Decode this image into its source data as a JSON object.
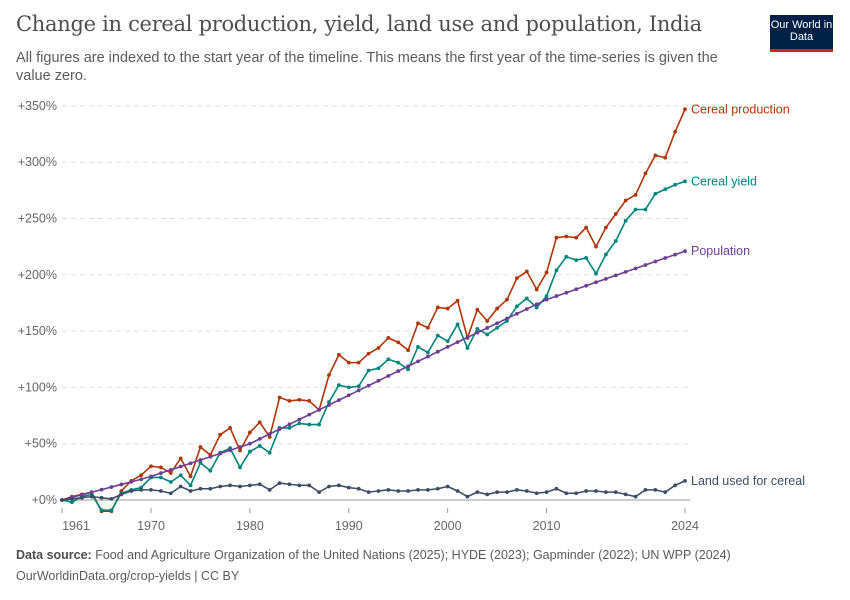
{
  "header": {
    "title": "Change in cereal production, yield, land use and population, India",
    "subtitle": "All figures are indexed to the start year of the timeline. This means the first year of the time-series is given the value zero.",
    "logo": "Our World in Data"
  },
  "footer": {
    "source_label": "Data source:",
    "source_text": " Food and Agriculture Organization of the United Nations (2025); HYDE (2023); Gapminder (2022); UN WPP (2024)",
    "url": "OurWorldinData.org/crop-yields | CC BY"
  },
  "chart_data": {
    "type": "line",
    "title": "Change in cereal production, yield, land use and population, India",
    "xlim": [
      1961,
      2024
    ],
    "ylim": [
      -10,
      350
    ],
    "x_ticks": [
      1961,
      1970,
      1980,
      1990,
      2000,
      2010,
      2024
    ],
    "y_ticks": [
      0,
      50,
      100,
      150,
      200,
      250,
      300,
      350
    ],
    "y_tick_labels": [
      "+0%",
      "+50%",
      "+100%",
      "+150%",
      "+200%",
      "+250%",
      "+300%",
      "+350%"
    ],
    "grid": "horizontal dashed",
    "legend": "inline labels at line ends (right)",
    "x_start": 1961,
    "series": [
      {
        "name": "Cereal production",
        "color": "#b13507",
        "values": [
          0,
          3,
          5,
          7,
          -10,
          -10,
          8,
          17,
          22,
          30,
          29,
          24,
          37,
          21,
          47,
          40,
          58,
          64,
          44,
          60,
          69,
          56,
          91,
          88,
          89,
          88,
          80,
          111,
          129,
          122,
          122,
          130,
          135,
          144,
          140,
          133,
          157,
          153,
          171,
          170,
          177,
          144,
          169,
          159,
          170,
          178,
          197,
          203,
          187,
          202,
          233,
          234,
          233,
          242,
          225,
          242,
          254,
          266,
          271,
          290,
          306,
          304,
          327,
          347
        ]
      },
      {
        "name": "Cereal yield",
        "color": "#00847e",
        "values": [
          0,
          -2,
          3,
          5,
          -9,
          -9,
          6,
          9,
          11,
          20,
          20,
          16,
          22,
          13,
          33,
          26,
          42,
          46,
          29,
          43,
          48,
          42,
          64,
          64,
          68,
          67,
          67,
          87,
          102,
          100,
          101,
          115,
          117,
          125,
          122,
          116,
          136,
          131,
          146,
          141,
          156,
          135,
          152,
          147,
          153,
          159,
          172,
          179,
          171,
          181,
          204,
          216,
          213,
          215,
          201,
          218,
          230,
          248,
          258,
          258,
          272,
          276,
          280,
          283
        ]
      },
      {
        "name": "Population",
        "color": "#6d3e91",
        "values": [
          0,
          2.3,
          4.6,
          6.9,
          9.2,
          11.5,
          13.8,
          16.1,
          18.4,
          21,
          23.9,
          26.8,
          29.7,
          32.6,
          35.5,
          38.4,
          41.3,
          44.2,
          47.1,
          50,
          54.3,
          58.6,
          62.9,
          67.2,
          71.5,
          75.8,
          80.1,
          84.4,
          88.7,
          93,
          97.3,
          101.6,
          105.9,
          110.2,
          114.5,
          118.8,
          123.1,
          127.4,
          131.7,
          136,
          140.2,
          144.4,
          148.6,
          152.8,
          157,
          161.2,
          165.4,
          169.6,
          173.8,
          178,
          181.1,
          184.1,
          187.2,
          190.3,
          193.4,
          196.4,
          199.5,
          202.6,
          205.6,
          208.7,
          211.8,
          214.9,
          217.9,
          221
        ]
      },
      {
        "name": "Land used for cereal",
        "color": "#3c4e66",
        "values": [
          0,
          1,
          2,
          3,
          2,
          1,
          5,
          8,
          9,
          9,
          8,
          6,
          12,
          8,
          10,
          10,
          12,
          13,
          12,
          13,
          14,
          9,
          15,
          14,
          13,
          13,
          7,
          12,
          13,
          11,
          10,
          7,
          8,
          9,
          8,
          8,
          9,
          9,
          10,
          12,
          8,
          3,
          7,
          5,
          7,
          7,
          9,
          8,
          6,
          7,
          10,
          6,
          6,
          8,
          8,
          7,
          7,
          5,
          3,
          9,
          9,
          7,
          13,
          17
        ]
      }
    ]
  }
}
